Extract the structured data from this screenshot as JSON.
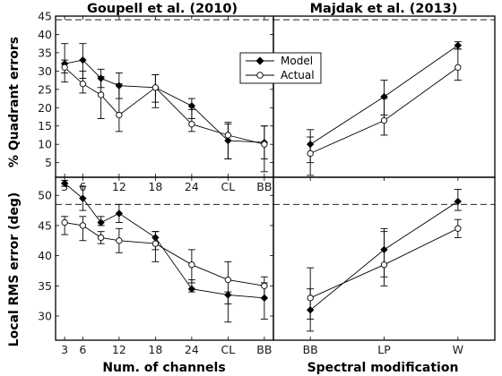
{
  "chart_data": [
    {
      "type": "line",
      "title": "Goupell et al. (2010)",
      "xlabel": "",
      "ylabel": "",
      "x_ticks": [
        "3",
        "6",
        "12",
        "18",
        "24",
        "CL",
        "BB"
      ],
      "x_tick_positions": [
        1,
        2,
        4,
        6,
        8,
        10,
        12
      ],
      "xlim": [
        0.5,
        12.5
      ],
      "ylim": [
        1,
        45
      ],
      "y_ticks": [
        5,
        10,
        15,
        20,
        25,
        30,
        35,
        40,
        45
      ],
      "reference_line": 44,
      "legend": {
        "placement": "top-right",
        "entries": [
          "Model",
          "Actual"
        ]
      },
      "series": [
        {
          "name": "Model",
          "marker": "filled-diamond",
          "x": [
            1,
            2,
            3,
            4,
            6,
            8,
            10,
            12
          ],
          "y": [
            32,
            33,
            28,
            26,
            25.5,
            20.5,
            11,
            10.5
          ],
          "err_low": [
            27,
            28,
            25.5,
            22.5,
            21.5,
            17,
            6,
            6
          ],
          "err_high": [
            37.5,
            37.5,
            30.5,
            29.5,
            29,
            22.5,
            15.5,
            15
          ]
        },
        {
          "name": "Actual",
          "marker": "open-circle",
          "x": [
            1,
            2,
            3,
            4,
            6,
            8,
            10,
            12
          ],
          "y": [
            31,
            26.5,
            23.5,
            18,
            25.5,
            15.5,
            12.5,
            10
          ],
          "err_low": [
            29.5,
            24,
            17,
            13.5,
            20,
            13.5,
            6,
            2.5
          ],
          "err_high": [
            33,
            30,
            28.5,
            26.5,
            29,
            19.5,
            16,
            15
          ]
        }
      ]
    },
    {
      "type": "line",
      "title": "Majdak et al. (2013)",
      "xlabel": "",
      "ylabel": "",
      "x_ticks": [],
      "xlim": [
        0.5,
        3.5
      ],
      "ylim": [
        1,
        45
      ],
      "y_ticks": [],
      "reference_line": 44,
      "series": [
        {
          "name": "Model",
          "marker": "filled-diamond",
          "x": [
            1,
            2,
            3
          ],
          "y": [
            10,
            23,
            37
          ],
          "err_low": [
            5,
            18,
            36
          ],
          "err_high": [
            14,
            27.5,
            38
          ]
        },
        {
          "name": "Actual",
          "marker": "open-circle",
          "x": [
            1,
            2,
            3
          ],
          "y": [
            7.5,
            16.5,
            31
          ],
          "err_low": [
            1.5,
            12.5,
            27.5
          ],
          "err_high": [
            12,
            22.5,
            36
          ]
        }
      ]
    },
    {
      "type": "line",
      "title": "",
      "xlabel": "Num. of channels",
      "ylabel": "",
      "x_ticks": [
        "3",
        "6",
        "12",
        "18",
        "24",
        "CL",
        "BB"
      ],
      "x_tick_positions": [
        1,
        2,
        4,
        6,
        8,
        10,
        12
      ],
      "xlim": [
        0.5,
        12.5
      ],
      "ylim": [
        26,
        53
      ],
      "y_ticks": [
        30,
        35,
        40,
        45,
        50
      ],
      "reference_line": 48.5,
      "series": [
        {
          "name": "Model",
          "marker": "filled-diamond",
          "x": [
            1,
            2,
            3,
            4,
            6,
            8,
            10,
            12
          ],
          "y": [
            52,
            49.5,
            45.5,
            47,
            43,
            34.5,
            33.5,
            33
          ],
          "err_low": [
            51.5,
            47.5,
            45,
            45.5,
            41,
            34,
            29,
            29.5
          ],
          "err_high": [
            52.5,
            51.5,
            46.5,
            48.5,
            44,
            36,
            34,
            35.5
          ]
        },
        {
          "name": "Actual",
          "marker": "open-circle",
          "x": [
            1,
            2,
            3,
            4,
            6,
            8,
            10,
            12
          ],
          "y": [
            45.5,
            45,
            43,
            42.5,
            42,
            38.5,
            36,
            35
          ],
          "err_low": [
            43.5,
            42.5,
            42,
            40.5,
            39,
            35.5,
            32,
            33
          ],
          "err_high": [
            46.5,
            46.5,
            44,
            44.5,
            44,
            41,
            39,
            36.5
          ]
        }
      ]
    },
    {
      "type": "line",
      "title": "",
      "xlabel": "Spectral modification",
      "ylabel": "",
      "x_ticks": [
        "BB",
        "LP",
        "W"
      ],
      "x_tick_positions": [
        1,
        2,
        3
      ],
      "xlim": [
        0.5,
        3.5
      ],
      "ylim": [
        26,
        53
      ],
      "y_ticks": [],
      "reference_line": 48.5,
      "series": [
        {
          "name": "Model",
          "marker": "filled-diamond",
          "x": [
            1,
            2,
            3
          ],
          "y": [
            31,
            41,
            49
          ],
          "err_low": [
            27.5,
            36.5,
            47.5
          ],
          "err_high": [
            34.5,
            44,
            51
          ]
        },
        {
          "name": "Actual",
          "marker": "open-circle",
          "x": [
            1,
            2,
            3
          ],
          "y": [
            33,
            38.5,
            44.5
          ],
          "err_low": [
            29.5,
            35,
            43
          ],
          "err_high": [
            38,
            44.5,
            46
          ]
        }
      ]
    }
  ],
  "y_axis_top": "% Quadrant errors",
  "y_axis_bottom": "Local RMS error (deg)"
}
